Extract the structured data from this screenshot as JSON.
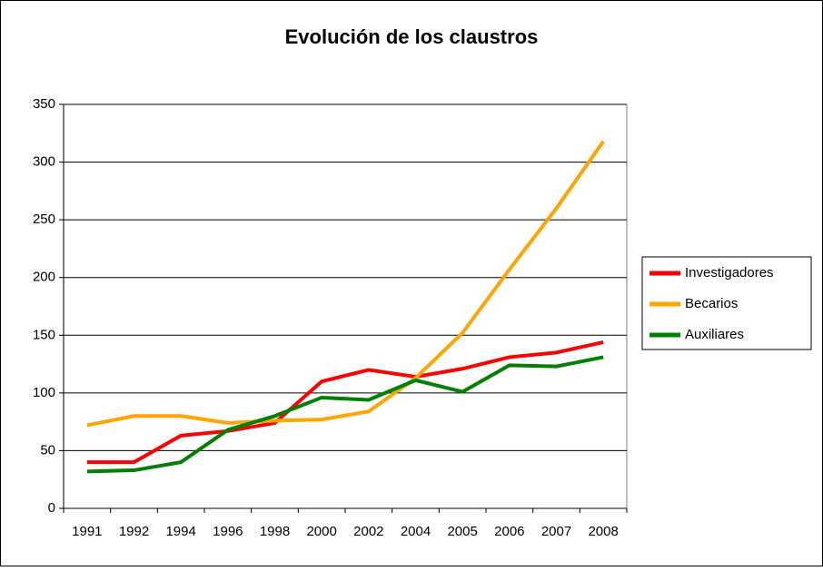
{
  "chart_data": {
    "type": "line",
    "title": "Evolución de los claustros",
    "categories": [
      "1991",
      "1992",
      "1994",
      "1996",
      "1998",
      "2000",
      "2002",
      "2004",
      "2005",
      "2006",
      "2007",
      "2008"
    ],
    "series": [
      {
        "name": "Investigadores",
        "color": "#ff0000",
        "values": [
          40,
          40,
          63,
          67,
          74,
          110,
          120,
          114,
          121,
          131,
          135,
          144
        ]
      },
      {
        "name": "Becarios",
        "color": "#ffa500",
        "values": [
          72,
          80,
          80,
          74,
          76,
          77,
          84,
          113,
          152,
          207,
          260,
          318
        ]
      },
      {
        "name": "Auxiliares",
        "color": "#008000",
        "values": [
          32,
          33,
          40,
          68,
          80,
          96,
          94,
          111,
          101,
          124,
          123,
          131
        ]
      }
    ],
    "ylim": [
      0,
      350
    ],
    "yticks": [
      0,
      50,
      100,
      150,
      200,
      250,
      300,
      350
    ],
    "grid": true,
    "legend": "right"
  }
}
